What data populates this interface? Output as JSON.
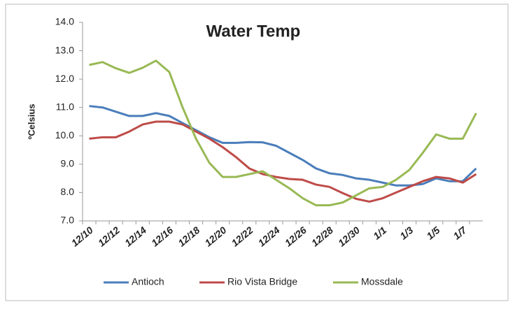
{
  "chart_data": {
    "type": "line",
    "title": "Water Temp",
    "y_label": "ºCelsius",
    "categories": [
      "12/10",
      null,
      "12/12",
      null,
      "12/14",
      null,
      "12/16",
      null,
      "12/18",
      null,
      "12/20",
      null,
      "12/22",
      null,
      "12/24",
      null,
      "12/26",
      null,
      "12/28",
      null,
      "12/30",
      null,
      "1/1",
      null,
      "1/3",
      null,
      "1/5",
      null,
      "1/7",
      null
    ],
    "series": [
      {
        "name": "Antioch",
        "color": "#4a7ebb",
        "values": [
          11.05,
          11.0,
          10.85,
          10.7,
          10.7,
          10.8,
          10.7,
          10.45,
          10.2,
          9.95,
          9.75,
          9.75,
          9.78,
          9.77,
          9.65,
          9.4,
          9.15,
          8.85,
          8.68,
          8.62,
          8.5,
          8.45,
          8.35,
          8.25,
          8.25,
          8.3,
          8.5,
          8.4,
          8.4,
          8.85
        ]
      },
      {
        "name": "Rio Vista Bridge",
        "color": "#be4b48",
        "values": [
          9.9,
          9.95,
          9.95,
          10.15,
          10.4,
          10.5,
          10.5,
          10.4,
          10.15,
          9.9,
          9.6,
          9.25,
          8.85,
          8.65,
          8.55,
          8.48,
          8.45,
          8.28,
          8.2,
          7.98,
          7.78,
          7.68,
          7.8,
          8.0,
          8.2,
          8.4,
          8.55,
          8.5,
          8.35,
          8.65
        ]
      },
      {
        "name": "Mossdale",
        "color": "#98b954",
        "values": [
          12.5,
          12.6,
          12.38,
          12.22,
          12.4,
          12.65,
          12.25,
          11.0,
          9.9,
          9.05,
          8.55,
          8.55,
          8.65,
          8.75,
          8.45,
          8.15,
          7.8,
          7.55,
          7.55,
          7.65,
          7.9,
          8.15,
          8.2,
          8.45,
          8.8,
          9.4,
          10.05,
          9.9,
          9.9,
          10.8
        ]
      }
    ],
    "ylim": [
      7,
      14
    ],
    "yticks": [
      {
        "value": 7,
        "label": "7.0"
      },
      {
        "value": 8,
        "label": "8.0"
      },
      {
        "value": 9,
        "label": "9.0"
      },
      {
        "value": 10,
        "label": "10.0"
      },
      {
        "value": 11,
        "label": "11.0"
      },
      {
        "value": 12,
        "label": "12.0"
      },
      {
        "value": 13,
        "label": "13.0"
      },
      {
        "value": 14,
        "label": "14.0"
      }
    ],
    "grid": false,
    "legend": "bottom"
  }
}
